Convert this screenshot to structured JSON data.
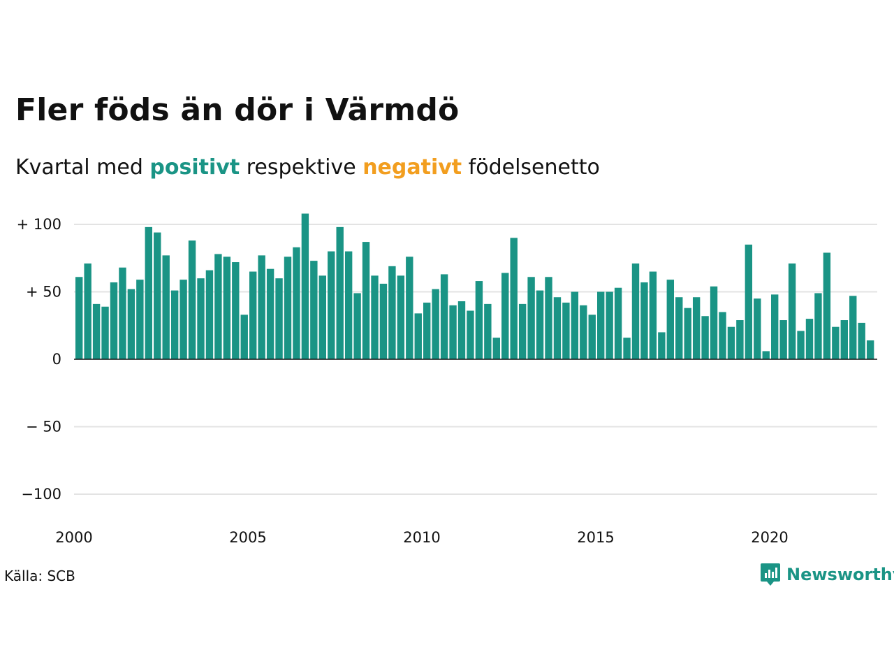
{
  "title": "Fler föds än dör i Värmdö",
  "subtitle": {
    "prefix": "Kvartal med ",
    "positive": "positivt",
    "middle": " respektive ",
    "negative": "negativt",
    "suffix": " födelsenetto"
  },
  "source": "Källa: SCB",
  "brand": "Newsworthy",
  "colors": {
    "positive": "#1a9485",
    "negative": "#f29e1f",
    "grid": "#e3e3e3",
    "baseline": "#111111"
  },
  "chart_data": {
    "type": "bar",
    "ylim": [
      -100,
      100
    ],
    "y_ticks": [
      {
        "value": 100,
        "label": "+ 100"
      },
      {
        "value": 50,
        "label": "+  50"
      },
      {
        "value": 0,
        "label": "0"
      },
      {
        "value": -50,
        "label": "− 50"
      },
      {
        "value": -100,
        "label": "−100"
      }
    ],
    "x_ticks": [
      "2000",
      "2005",
      "2010",
      "2015",
      "2020"
    ],
    "x_start": "2000-Q1",
    "values": [
      61,
      71,
      41,
      39,
      57,
      68,
      52,
      59,
      98,
      94,
      77,
      51,
      59,
      88,
      60,
      66,
      78,
      76,
      72,
      33,
      65,
      77,
      67,
      60,
      76,
      83,
      108,
      73,
      62,
      80,
      98,
      80,
      49,
      87,
      62,
      56,
      69,
      62,
      76,
      34,
      42,
      52,
      63,
      40,
      43,
      36,
      58,
      41,
      16,
      64,
      90,
      41,
      61,
      51,
      61,
      46,
      42,
      50,
      40,
      33,
      50,
      50,
      53,
      16,
      71,
      57,
      65,
      20,
      59,
      46,
      38,
      46,
      32,
      54,
      35,
      24,
      29,
      85,
      45,
      6,
      48,
      29,
      71,
      21,
      30,
      49,
      79,
      24,
      29,
      47,
      27,
      14
    ]
  }
}
